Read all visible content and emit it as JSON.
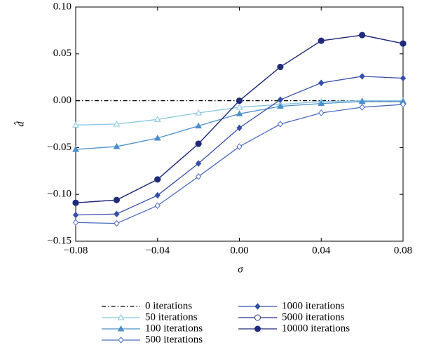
{
  "chart_data": {
    "type": "line",
    "x_label": "σ",
    "y_label": "d̂",
    "x": [
      -0.08,
      -0.06,
      -0.04,
      -0.02,
      0,
      0.02,
      0.04,
      0.06,
      0.08
    ],
    "xlim": [
      -0.08,
      0.08
    ],
    "xticks": [
      {
        "value": -0.08,
        "label": "−0.08"
      },
      {
        "value": -0.04,
        "label": "−0.04"
      },
      {
        "value": 0,
        "label": "0.00"
      },
      {
        "value": 0.04,
        "label": "0.04"
      },
      {
        "value": 0.08,
        "label": "0.08"
      }
    ],
    "ylim": [
      -0.15,
      0.1
    ],
    "yticks": [
      {
        "value": -0.15,
        "label": "−0.15"
      },
      {
        "value": -0.1,
        "label": "−0.10"
      },
      {
        "value": -0.05,
        "label": "−0.05"
      },
      {
        "value": 0,
        "label": "0.00"
      },
      {
        "value": 0.05,
        "label": "0.05"
      },
      {
        "value": 0.1,
        "label": "0.10"
      }
    ],
    "series": [
      {
        "name": "0 iterations",
        "color": "#000000",
        "marker": "none",
        "dash": "dashdot",
        "values": [
          0,
          0,
          0,
          0,
          0,
          0,
          0,
          0,
          0
        ]
      },
      {
        "name": "50 iterations",
        "color": "#86c6e3",
        "marker": "triangle-open",
        "values": [
          -0.026,
          -0.025,
          -0.02,
          -0.013,
          -0.007,
          -0.004,
          -0.001,
          0,
          0
        ]
      },
      {
        "name": "100 iterations",
        "color": "#4b8fca",
        "marker": "triangle",
        "values": [
          -0.052,
          -0.049,
          -0.04,
          -0.027,
          -0.014,
          -0.006,
          -0.003,
          -0.001,
          -0.001
        ]
      },
      {
        "name": "500 iterations",
        "color": "#4a6cc0",
        "marker": "diamond-open",
        "values": [
          -0.13,
          -0.131,
          -0.112,
          -0.081,
          -0.049,
          -0.025,
          -0.013,
          -0.007,
          -0.004
        ]
      },
      {
        "name": "1000 iterations",
        "color": "#3650a8",
        "marker": "diamond",
        "values": [
          -0.122,
          -0.121,
          -0.101,
          -0.067,
          -0.029,
          0.001,
          0.019,
          0.026,
          0.024
        ]
      },
      {
        "name": "5000 iterations",
        "color": "#26348c",
        "marker": "circle-open",
        "values": [
          -0.109,
          -0.106,
          -0.084,
          -0.046,
          0,
          0.036,
          0.064,
          0.07,
          0.061
        ]
      },
      {
        "name": "10000 iterations",
        "color": "#1f2a78",
        "marker": "circle",
        "values": [
          -0.109,
          -0.106,
          -0.084,
          -0.046,
          0,
          0.036,
          0.064,
          0.07,
          0.061
        ]
      }
    ]
  }
}
